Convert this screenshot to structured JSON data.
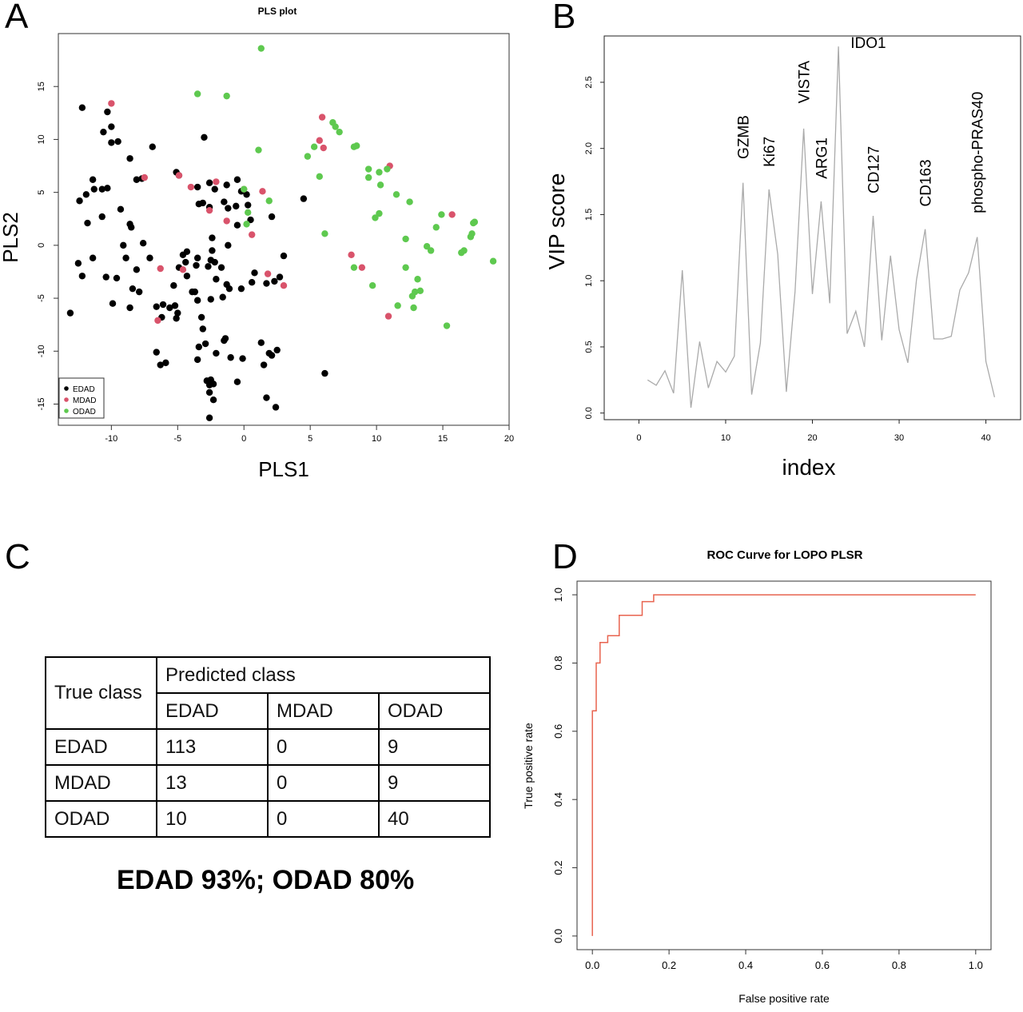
{
  "panels": {
    "a": "A",
    "b": "B",
    "c": "C",
    "d": "D"
  },
  "chart_data": [
    {
      "panel": "A",
      "type": "scatter",
      "title": "PLS plot",
      "xlabel": "PLS1",
      "ylabel": "PLS2",
      "xlim": [
        -14,
        20
      ],
      "ylim": [
        -17,
        20
      ],
      "xticks": [
        -10,
        -5,
        0,
        5,
        10,
        15,
        20
      ],
      "yticks": [
        -15,
        -10,
        -5,
        0,
        5,
        10,
        15
      ],
      "legend": {
        "position": "bottom-left",
        "entries": [
          "EDAD",
          "MDAD",
          "ODAD"
        ]
      },
      "colors": {
        "EDAD": "#000000",
        "MDAD": "#d9536b",
        "ODAD": "#5ec94f"
      },
      "series": [
        {
          "name": "EDAD",
          "points": [
            [
              -12.2,
              13
            ],
            [
              -10.3,
              12.6
            ],
            [
              -10,
              11.2
            ],
            [
              -10.6,
              10.7
            ],
            [
              -9.5,
              9.8
            ],
            [
              -10,
              9.7
            ],
            [
              -8.6,
              8.2
            ],
            [
              -6.9,
              9.3
            ],
            [
              -3,
              10.2
            ],
            [
              -11.4,
              6.2
            ],
            [
              -12.4,
              4.2
            ],
            [
              -11.9,
              4.8
            ],
            [
              -11.3,
              5.3
            ],
            [
              -10.7,
              5.3
            ],
            [
              -10.3,
              5.4
            ],
            [
              -10.7,
              2.7
            ],
            [
              -11.8,
              2.1
            ],
            [
              -9.3,
              3.4
            ],
            [
              -8.5,
              1.7
            ],
            [
              -8.6,
              2
            ],
            [
              -8.1,
              6.2
            ],
            [
              -7.7,
              6.3
            ],
            [
              -12.5,
              -1.7
            ],
            [
              -12.2,
              -2.9
            ],
            [
              -11.4,
              -1.2
            ],
            [
              -10.4,
              -3
            ],
            [
              -9.6,
              -3.1
            ],
            [
              -9.1,
              0
            ],
            [
              -8.9,
              -1.2
            ],
            [
              -8.1,
              -2.3
            ],
            [
              -7.6,
              0.2
            ],
            [
              -7.1,
              -1.2
            ],
            [
              -8.4,
              -4.1
            ],
            [
              -7.9,
              -4.4
            ],
            [
              -8.6,
              -5.9
            ],
            [
              -9.9,
              -5.5
            ],
            [
              -13.1,
              -6.4
            ],
            [
              -6.6,
              -5.8
            ],
            [
              -6.1,
              -5.6
            ],
            [
              -5.6,
              -5.9
            ],
            [
              -5.2,
              -5.7
            ],
            [
              -6.2,
              -6.8
            ],
            [
              -5.1,
              -6.9
            ],
            [
              -5.3,
              -3.8
            ],
            [
              -4.9,
              -2.1
            ],
            [
              -4.4,
              -1.6
            ],
            [
              -4.3,
              -0.6
            ],
            [
              -4.6,
              -0.9
            ],
            [
              -3.5,
              -1.2
            ],
            [
              -3.6,
              -1.9
            ],
            [
              -3.7,
              -4.4
            ],
            [
              -3.5,
              -5.2
            ],
            [
              -3.2,
              -6.8
            ],
            [
              -3.1,
              -7.9
            ],
            [
              -2.9,
              -9.3
            ],
            [
              -3.5,
              -10.8
            ],
            [
              -3.4,
              -9.6
            ],
            [
              -6.6,
              -10.1
            ],
            [
              -6.3,
              -11.3
            ],
            [
              -5.9,
              -11.1
            ],
            [
              -5,
              -6.4
            ],
            [
              -4.3,
              -2.9
            ],
            [
              -5.1,
              6.9
            ],
            [
              -4.9,
              6.6
            ],
            [
              -3.5,
              5.5
            ],
            [
              -3.4,
              3.9
            ],
            [
              -3.1,
              4
            ],
            [
              -2.6,
              3.6
            ],
            [
              -2.6,
              5.9
            ],
            [
              -2.2,
              5.3
            ],
            [
              -1.3,
              5.7
            ],
            [
              -0.5,
              6.2
            ],
            [
              -0.2,
              5.1
            ],
            [
              0.2,
              4.8
            ],
            [
              0.3,
              3.8
            ],
            [
              -1.5,
              4.1
            ],
            [
              -0.6,
              3.7
            ],
            [
              -1.2,
              3.5
            ],
            [
              -0.5,
              1.9
            ],
            [
              0.5,
              2.4
            ],
            [
              -1.2,
              0
            ],
            [
              -2.4,
              0.7
            ],
            [
              -2.4,
              -0.5
            ],
            [
              -2.5,
              -1.4
            ],
            [
              -2.7,
              -2
            ],
            [
              -2.2,
              -1.6
            ],
            [
              -1.7,
              -2.1
            ],
            [
              -2.1,
              -3.2
            ],
            [
              -1.3,
              -3.7
            ],
            [
              -1.6,
              -4.9
            ],
            [
              -2.5,
              -5.1
            ],
            [
              -3.9,
              -4.4
            ],
            [
              -1.1,
              -4.1
            ],
            [
              -0.2,
              -4.1
            ],
            [
              0.6,
              -3.5
            ],
            [
              0.8,
              -2.6
            ],
            [
              1.7,
              -3.6
            ],
            [
              2.3,
              -3.4
            ],
            [
              2.7,
              -3
            ],
            [
              3,
              -1
            ],
            [
              2.1,
              2.7
            ],
            [
              -1.5,
              -9
            ],
            [
              -1.4,
              -8.8
            ],
            [
              -2.1,
              -10.2
            ],
            [
              -1,
              -10.6
            ],
            [
              -0.1,
              -10.7
            ],
            [
              -2.8,
              -12.8
            ],
            [
              -2.6,
              -13.2
            ],
            [
              -2.5,
              -12.7
            ],
            [
              -2.3,
              -13.1
            ],
            [
              -2.6,
              -13.9
            ],
            [
              -2.3,
              -14.6
            ],
            [
              -2.6,
              -16.3
            ],
            [
              -0.5,
              -12.9
            ],
            [
              1.3,
              -9.2
            ],
            [
              1.9,
              -10.2
            ],
            [
              2.1,
              -10.4
            ],
            [
              1.5,
              -11.3
            ],
            [
              1.7,
              -14.4
            ],
            [
              2.4,
              -15.3
            ],
            [
              2.5,
              -9.9
            ],
            [
              6.1,
              -12.1
            ],
            [
              4.5,
              4.4
            ]
          ]
        },
        {
          "name": "MDAD",
          "points": [
            [
              -10,
              13.4
            ],
            [
              -7.5,
              6.4
            ],
            [
              -4.9,
              6.6
            ],
            [
              -6.3,
              -2.2
            ],
            [
              -4.6,
              -2.3
            ],
            [
              -6.5,
              -7.1
            ],
            [
              -4,
              5.5
            ],
            [
              -2.6,
              3.3
            ],
            [
              -2.1,
              6
            ],
            [
              -1.3,
              2.3
            ],
            [
              0,
              5.3
            ],
            [
              0.6,
              1
            ],
            [
              1.4,
              5.1
            ],
            [
              1.8,
              -2.7
            ],
            [
              3,
              -3.8
            ],
            [
              5.9,
              12.1
            ],
            [
              5.7,
              9.9
            ],
            [
              6,
              9.2
            ],
            [
              11,
              7.5
            ],
            [
              15.7,
              2.9
            ],
            [
              8.1,
              -0.9
            ],
            [
              8.9,
              -2.1
            ],
            [
              10.9,
              -6.7
            ]
          ]
        },
        {
          "name": "ODAD",
          "points": [
            [
              1.3,
              18.6
            ],
            [
              -3.5,
              14.3
            ],
            [
              -1.3,
              14.1
            ],
            [
              1.1,
              9
            ],
            [
              0,
              5.3
            ],
            [
              0.2,
              2
            ],
            [
              1.9,
              4.2
            ],
            [
              0.3,
              3.1
            ],
            [
              4.8,
              8.4
            ],
            [
              5.3,
              9.3
            ],
            [
              5.7,
              6.5
            ],
            [
              6.1,
              1.1
            ],
            [
              6.7,
              11.6
            ],
            [
              6.9,
              11.2
            ],
            [
              7.2,
              10.7
            ],
            [
              8.3,
              9.3
            ],
            [
              8.5,
              9.4
            ],
            [
              9.4,
              7.2
            ],
            [
              9.4,
              6.4
            ],
            [
              10.2,
              6.9
            ],
            [
              10.8,
              7.2
            ],
            [
              10.3,
              5.7
            ],
            [
              10.2,
              3
            ],
            [
              9.9,
              2.6
            ],
            [
              11.5,
              4.8
            ],
            [
              12.2,
              0.6
            ],
            [
              12.5,
              4.1
            ],
            [
              12.2,
              -2.1
            ],
            [
              11.6,
              -5.7
            ],
            [
              12.7,
              -4.8
            ],
            [
              13.1,
              -3.2
            ],
            [
              13.3,
              -4.3
            ],
            [
              12.8,
              -5.9
            ],
            [
              12.9,
              -4.4
            ],
            [
              13.8,
              -0.1
            ],
            [
              14.1,
              -0.5
            ],
            [
              14.9,
              2.9
            ],
            [
              14.5,
              1.7
            ],
            [
              15.3,
              -7.6
            ],
            [
              16.4,
              -0.7
            ],
            [
              16.6,
              -0.5
            ],
            [
              17.1,
              0.8
            ],
            [
              17.2,
              1.1
            ],
            [
              17.3,
              2.1
            ],
            [
              17.4,
              2.2
            ],
            [
              18.8,
              -1.5
            ],
            [
              8.3,
              -2.1
            ],
            [
              9.7,
              -3.8
            ]
          ]
        }
      ]
    },
    {
      "panel": "B",
      "type": "line",
      "xlabel": "index",
      "ylabel": "VIP score",
      "xlim": [
        -4,
        44
      ],
      "ylim": [
        -0.05,
        2.85
      ],
      "xticks": [
        0,
        10,
        20,
        30,
        40
      ],
      "yticks": [
        0.0,
        0.5,
        1.0,
        1.5,
        2.0,
        2.5
      ],
      "line_color": "#aaaaaa",
      "series": [
        {
          "x": [
            1,
            2,
            3,
            4,
            5,
            6,
            7,
            8,
            9,
            10,
            11,
            12,
            13,
            14,
            15,
            16,
            17,
            18,
            19,
            20,
            21,
            22,
            23,
            24,
            25,
            26,
            27,
            28,
            29,
            30,
            31,
            32,
            33,
            34,
            35,
            36,
            37,
            38,
            39,
            40,
            41
          ],
          "values": [
            0.25,
            0.21,
            0.32,
            0.15,
            1.08,
            0.04,
            0.54,
            0.19,
            0.39,
            0.31,
            0.43,
            1.74,
            0.14,
            0.53,
            1.69,
            1.2,
            0.16,
            0.92,
            2.15,
            0.9,
            1.6,
            0.83,
            2.77,
            0.6,
            0.77,
            0.5,
            1.49,
            0.55,
            1.19,
            0.63,
            0.38,
            1.01,
            1.39,
            0.56,
            0.56,
            0.58,
            0.93,
            1.06,
            1.33,
            0.39,
            0.12
          ]
        }
      ],
      "annotations": [
        {
          "text": "GZMB",
          "x": 12,
          "y": 1.92
        },
        {
          "text": "Ki67",
          "x": 15,
          "y": 1.86
        },
        {
          "text": "VISTA",
          "x": 19,
          "y": 2.34
        },
        {
          "text": "ARG1",
          "x": 21,
          "y": 1.77
        },
        {
          "text": "IDO1",
          "x": 24.4,
          "y": 2.76
        },
        {
          "text": "CD127",
          "x": 27,
          "y": 1.66
        },
        {
          "text": "CD163",
          "x": 33,
          "y": 1.56
        },
        {
          "text": "phospho-PRAS40",
          "x": 39,
          "y": 1.51
        }
      ]
    },
    {
      "panel": "C",
      "type": "table",
      "header": {
        "true_class": "True class",
        "predicted_class": "Predicted class",
        "columns": [
          "EDAD",
          "MDAD",
          "ODAD"
        ]
      },
      "rows": [
        {
          "label": "EDAD",
          "values": [
            "113",
            "0",
            "9"
          ]
        },
        {
          "label": "MDAD",
          "values": [
            "13",
            "0",
            "9"
          ]
        },
        {
          "label": "ODAD",
          "values": [
            "10",
            "0",
            "40"
          ]
        }
      ],
      "summary": "EDAD 93%; ODAD 80%"
    },
    {
      "panel": "D",
      "type": "line",
      "title": "ROC Curve for LOPO PLSR",
      "xlabel": "False positive rate",
      "ylabel": "True positive rate",
      "xlim": [
        -0.04,
        1.04
      ],
      "ylim": [
        -0.04,
        1.04
      ],
      "xticks": [
        "0.0",
        "0.2",
        "0.4",
        "0.6",
        "0.8",
        "1.0"
      ],
      "yticks": [
        "0.0",
        "0.2",
        "0.4",
        "0.6",
        "0.8",
        "1.0"
      ],
      "line_color": "#e8634f",
      "series": [
        {
          "x": [
            0,
            0,
            0.01,
            0.01,
            0.02,
            0.02,
            0.04,
            0.04,
            0.07,
            0.07,
            0.13,
            0.13,
            0.16,
            0.16,
            1.0
          ],
          "values": [
            0,
            0.66,
            0.66,
            0.8,
            0.8,
            0.86,
            0.86,
            0.88,
            0.88,
            0.94,
            0.94,
            0.98,
            0.98,
            1.0,
            1.0
          ]
        }
      ]
    }
  ]
}
